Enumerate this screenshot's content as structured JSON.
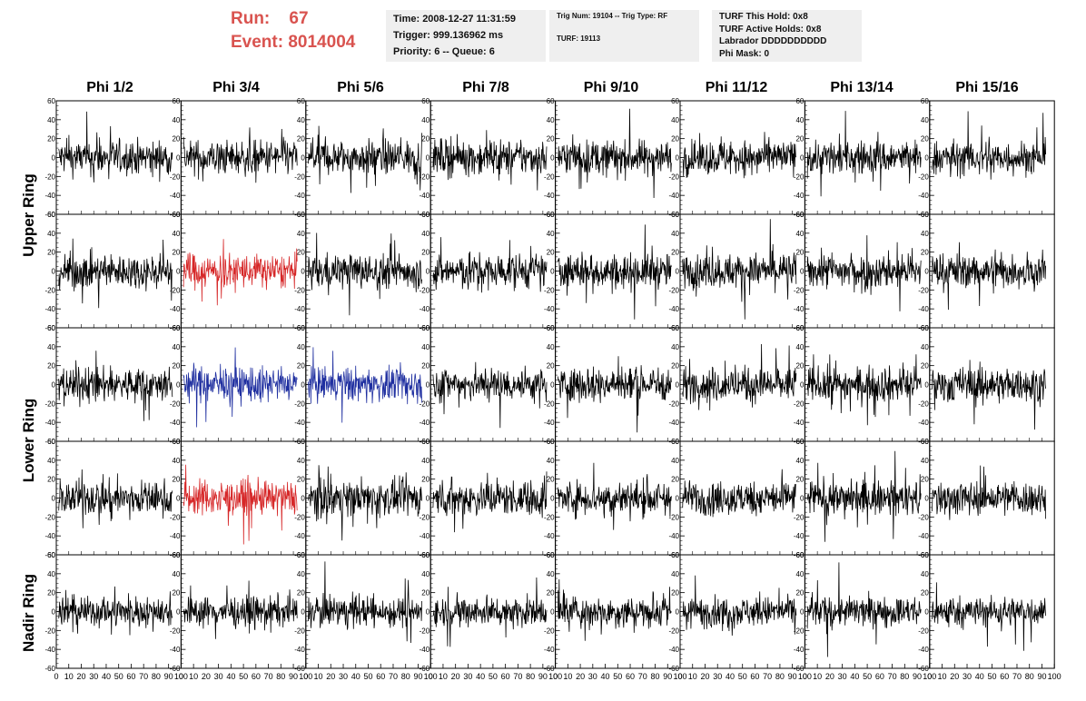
{
  "header": {
    "run_label": "Run:",
    "run_value": "67",
    "event_label": "Event:",
    "event_value": "8014004",
    "time_line": "Time: 2008-12-27 11:31:59",
    "trigger_line": "Trigger: 999.136962 ms",
    "priority_line": "Priority: 6 -- Queue: 6",
    "trig_line": "Trig Num: 19104 -- Trig Type: RF",
    "turf_line": "TURF: 19113",
    "turf_hold": "TURF This Hold: 0x8",
    "turf_active": "TURF Active Holds: 0x8",
    "labrador": "Labrador DDDDDDDDDD",
    "phi_mask": "Phi Mask: 0"
  },
  "chart_data": {
    "type": "line",
    "columns": [
      "Phi 1/2",
      "Phi 3/4",
      "Phi 5/6",
      "Phi 7/8",
      "Phi 9/10",
      "Phi 11/12",
      "Phi 13/14",
      "Phi 15/16"
    ],
    "ring_labels": [
      {
        "label": "Upper Ring",
        "rows": [
          0,
          1
        ]
      },
      {
        "label": "Lower Ring",
        "rows": [
          2,
          3
        ]
      },
      {
        "label": "Nadir Ring",
        "rows": [
          4
        ]
      }
    ],
    "rows": 5,
    "ylim": [
      -60,
      60
    ],
    "yticks": [
      -60,
      -40,
      -20,
      0,
      20,
      40,
      60
    ],
    "xlim": [
      0,
      100
    ],
    "xticks": [
      0,
      10,
      20,
      30,
      40,
      50,
      60,
      70,
      80,
      90,
      100
    ],
    "samples_per_trace": 260,
    "colors": {
      "normal": "#000000",
      "triggered_red": "#d62728",
      "triggered_blue": "#1f2fa0"
    },
    "trace_colors": [
      [
        "normal",
        "normal",
        "normal",
        "normal",
        "normal",
        "normal",
        "normal",
        "normal"
      ],
      [
        "normal",
        "triggered_red",
        "normal",
        "normal",
        "normal",
        "normal",
        "normal",
        "normal"
      ],
      [
        "normal",
        "triggered_blue",
        "triggered_blue",
        "normal",
        "normal",
        "normal",
        "normal",
        "normal"
      ],
      [
        "normal",
        "triggered_red",
        "normal",
        "normal",
        "normal",
        "normal",
        "normal",
        "normal"
      ],
      [
        "normal",
        "normal",
        "normal",
        "normal",
        "normal",
        "normal",
        "normal",
        "normal"
      ]
    ],
    "amplitude_note_per_row": [
      15,
      15,
      15,
      15,
      13
    ]
  }
}
